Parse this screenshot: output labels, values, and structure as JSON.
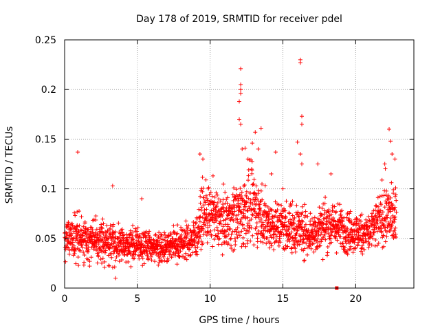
{
  "chart_data": {
    "type": "scatter",
    "title": "Day 178 of 2019, SRMTID for receiver pdel",
    "xlabel": "GPS time / hours",
    "ylabel": "SRMTID / TECUs",
    "xlim": [
      0,
      24
    ],
    "ylim": [
      0,
      0.25
    ],
    "xticks": [
      0,
      5,
      10,
      15,
      20
    ],
    "xtick_labels": [
      "0",
      "5",
      "10",
      "15",
      "20"
    ],
    "yticks": [
      0,
      0.05,
      0.1,
      0.15,
      0.2,
      0.25
    ],
    "ytick_labels": [
      "0",
      "0.05",
      "0.1",
      "0.15",
      "0.2",
      "0.25"
    ],
    "grid": true,
    "marker": "plus",
    "colors": {
      "series": "#ff0000",
      "grid": "#a0a0a0",
      "axes": "#000000"
    },
    "series": [
      {
        "name": "SRMTID",
        "profile": {
          "hours": [
            0,
            1,
            2,
            3,
            4,
            5,
            6,
            7,
            8,
            9,
            9.5,
            10,
            11,
            12,
            13,
            14,
            15,
            16,
            17,
            18,
            19,
            20,
            21,
            22,
            22.8
          ],
          "center": [
            0.05,
            0.05,
            0.048,
            0.046,
            0.044,
            0.043,
            0.042,
            0.042,
            0.045,
            0.05,
            0.075,
            0.072,
            0.068,
            0.075,
            0.082,
            0.065,
            0.062,
            0.06,
            0.055,
            0.065,
            0.06,
            0.055,
            0.056,
            0.075,
            0.07
          ],
          "spread": [
            0.016,
            0.016,
            0.014,
            0.014,
            0.012,
            0.011,
            0.011,
            0.011,
            0.012,
            0.014,
            0.02,
            0.02,
            0.018,
            0.025,
            0.026,
            0.018,
            0.018,
            0.018,
            0.016,
            0.018,
            0.016,
            0.014,
            0.014,
            0.022,
            0.02
          ]
        },
        "highlights": [
          {
            "x": 0.9,
            "y": 0.137
          },
          {
            "x": 3.3,
            "y": 0.103
          },
          {
            "x": 3.5,
            "y": 0.01
          },
          {
            "x": 5.3,
            "y": 0.09
          },
          {
            "x": 9.3,
            "y": 0.135
          },
          {
            "x": 9.5,
            "y": 0.13
          },
          {
            "x": 10.2,
            "y": 0.113
          },
          {
            "x": 12.0,
            "y": 0.188
          },
          {
            "x": 12.0,
            "y": 0.17
          },
          {
            "x": 12.1,
            "y": 0.221
          },
          {
            "x": 12.1,
            "y": 0.205
          },
          {
            "x": 12.1,
            "y": 0.2
          },
          {
            "x": 12.1,
            "y": 0.196
          },
          {
            "x": 12.1,
            "y": 0.165
          },
          {
            "x": 12.2,
            "y": 0.14
          },
          {
            "x": 12.4,
            "y": 0.141
          },
          {
            "x": 12.6,
            "y": 0.13
          },
          {
            "x": 12.9,
            "y": 0.146
          },
          {
            "x": 13.1,
            "y": 0.157
          },
          {
            "x": 13.3,
            "y": 0.14
          },
          {
            "x": 13.5,
            "y": 0.161
          },
          {
            "x": 14.2,
            "y": 0.115
          },
          {
            "x": 14.5,
            "y": 0.137
          },
          {
            "x": 15.0,
            "y": 0.1
          },
          {
            "x": 16.0,
            "y": 0.147
          },
          {
            "x": 16.2,
            "y": 0.23
          },
          {
            "x": 16.2,
            "y": 0.227
          },
          {
            "x": 16.3,
            "y": 0.173
          },
          {
            "x": 16.3,
            "y": 0.165
          },
          {
            "x": 16.2,
            "y": 0.135
          },
          {
            "x": 16.3,
            "y": 0.125
          },
          {
            "x": 17.4,
            "y": 0.125
          },
          {
            "x": 18.3,
            "y": 0.115
          },
          {
            "x": 22.0,
            "y": 0.125
          },
          {
            "x": 22.3,
            "y": 0.16
          },
          {
            "x": 22.4,
            "y": 0.148
          },
          {
            "x": 22.5,
            "y": 0.135
          },
          {
            "x": 22.7,
            "y": 0.13
          },
          {
            "x": 18.7,
            "y": 0.0
          }
        ]
      }
    ]
  }
}
